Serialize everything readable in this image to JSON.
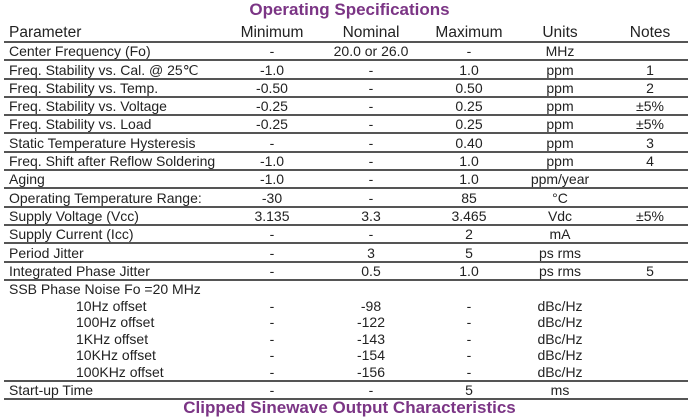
{
  "title": "Operating Specifications",
  "next_title": "Clipped Sinewave Output Characteristics",
  "headers": [
    "Parameter",
    "Minimum",
    "Nominal",
    "Maximum",
    "Units",
    "Notes"
  ],
  "rows": [
    [
      "Center Frequency (Fo)",
      "-",
      "20.0 or 26.0",
      "-",
      "MHz",
      ""
    ],
    [
      "Freq. Stability vs. Cal. @ 25℃",
      "-1.0",
      "-",
      "1.0",
      "ppm",
      "1"
    ],
    [
      "Freq. Stability vs. Temp.",
      "-0.50",
      "-",
      "0.50",
      "ppm",
      "2"
    ],
    [
      "Freq. Stability vs. Voltage",
      "-0.25",
      "-",
      "0.25",
      "ppm",
      "±5%"
    ],
    [
      "Freq. Stability vs. Load",
      "-0.25",
      "-",
      "0.25",
      "ppm",
      "±5%"
    ],
    [
      "Static Temperature Hysteresis",
      "-",
      "-",
      "0.40",
      "ppm",
      "3"
    ],
    [
      "Freq. Shift after Reflow Soldering",
      "-1.0",
      "-",
      "1.0",
      "ppm",
      "4"
    ],
    [
      "Aging",
      "-1.0",
      "-",
      "1.0",
      "ppm/year",
      ""
    ],
    [
      "Operating Temperature Range:",
      "-30",
      "-",
      "85",
      "°C",
      ""
    ],
    [
      "Supply Voltage (Vcc)",
      "3.135",
      "3.3",
      "3.465",
      "Vdc",
      "±5%"
    ],
    [
      "Supply Current (Icc)",
      "-",
      "-",
      "2",
      "mA",
      ""
    ],
    [
      "Period Jitter",
      "-",
      "3",
      "5",
      "ps rms",
      ""
    ],
    [
      "Integrated Phase Jitter",
      "-",
      "0.5",
      "1.0",
      "ps rms",
      "5"
    ]
  ],
  "phase_noise": {
    "label": "SSB Phase Noise Fo =20 MHz",
    "rows": [
      [
        "10Hz offset",
        "-",
        "-98",
        "-",
        "dBc/Hz",
        ""
      ],
      [
        "100Hz offset",
        "-",
        "-122",
        "-",
        "dBc/Hz",
        ""
      ],
      [
        "1KHz offset",
        "-",
        "-143",
        "-",
        "dBc/Hz",
        ""
      ],
      [
        "10KHz offset",
        "-",
        "-154",
        "-",
        "dBc/Hz",
        ""
      ],
      [
        "100KHz offset",
        "-",
        "-156",
        "-",
        "dBc/Hz",
        ""
      ]
    ]
  },
  "final_rows": [
    [
      "Start-up Time",
      "-",
      "-",
      "5",
      "ms",
      ""
    ]
  ]
}
